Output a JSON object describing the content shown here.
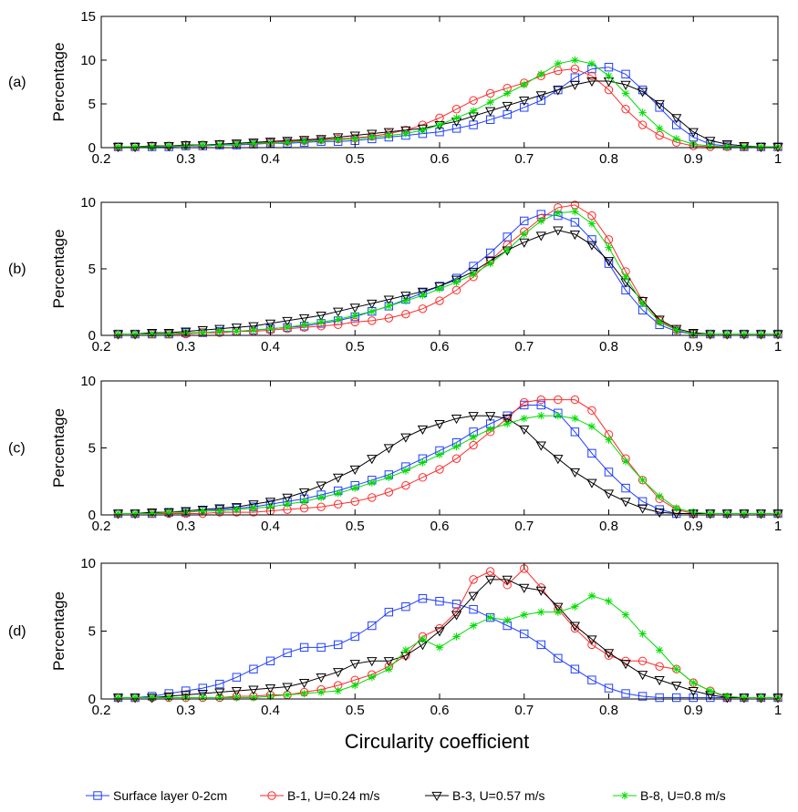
{
  "xlabel": "Circularity coefficient",
  "colors": {
    "Surface layer 0-2cm": "#1f3fff",
    "B-1, U=0.24 m/s": "#ff2a2a",
    "B-3, U=0.57 m/s": "#000000",
    "B-8, U=0.8 m/s": "#00dd00"
  },
  "markers": {
    "Surface layer 0-2cm": "square",
    "B-1, U=0.24 m/s": "circle",
    "B-3, U=0.57 m/s": "triangle-down",
    "B-8, U=0.8 m/s": "star"
  },
  "legend": [
    "Surface layer 0-2cm",
    "B-1, U=0.24 m/s",
    "B-3, U=0.57 m/s",
    "B-8, U=0.8 m/s"
  ],
  "chart_data": [
    {
      "type": "line",
      "panel_label": "(a)",
      "ylabel": "Percentage",
      "xlim": [
        0.2,
        1
      ],
      "ylim": [
        0,
        15
      ],
      "xticks": [
        "0.2",
        "0.3",
        "0.4",
        "0.5",
        "0.6",
        "0.7",
        "0.8",
        "0.9",
        "1"
      ],
      "yticks": [
        "0",
        "5",
        "10",
        "15"
      ],
      "x": [
        0.22,
        0.24,
        0.26,
        0.28,
        0.3,
        0.32,
        0.34,
        0.36,
        0.38,
        0.4,
        0.42,
        0.44,
        0.46,
        0.48,
        0.5,
        0.52,
        0.54,
        0.56,
        0.58,
        0.6,
        0.62,
        0.64,
        0.66,
        0.68,
        0.7,
        0.72,
        0.74,
        0.76,
        0.78,
        0.8,
        0.82,
        0.84,
        0.86,
        0.88,
        0.9,
        0.92,
        0.94,
        0.96,
        0.98,
        1.0
      ],
      "series": [
        {
          "name": "Surface layer 0-2cm",
          "values": [
            0.1,
            0.1,
            0.1,
            0.1,
            0.2,
            0.2,
            0.3,
            0.3,
            0.4,
            0.5,
            0.5,
            0.6,
            0.7,
            0.7,
            0.8,
            1.0,
            1.2,
            1.4,
            1.6,
            1.8,
            2.2,
            2.6,
            3.2,
            3.8,
            4.6,
            5.4,
            6.6,
            8.0,
            9.0,
            9.2,
            8.4,
            6.6,
            4.6,
            2.6,
            1.2,
            0.4,
            0.2,
            0.1,
            0.1,
            0.1
          ]
        },
        {
          "name": "B-1, U=0.24 m/s",
          "values": [
            0.1,
            0.1,
            0.2,
            0.2,
            0.3,
            0.3,
            0.4,
            0.4,
            0.5,
            0.6,
            0.7,
            0.8,
            0.9,
            1.0,
            1.1,
            1.3,
            1.6,
            2.0,
            2.6,
            3.4,
            4.4,
            5.4,
            6.2,
            6.8,
            7.4,
            8.2,
            8.8,
            9.0,
            8.2,
            6.6,
            4.4,
            2.6,
            1.4,
            0.6,
            0.2,
            0.1,
            0.1,
            0.1,
            0.1,
            0.1
          ]
        },
        {
          "name": "B-3, U=0.57 m/s",
          "values": [
            0.1,
            0.1,
            0.2,
            0.2,
            0.3,
            0.3,
            0.4,
            0.5,
            0.6,
            0.7,
            0.8,
            0.9,
            1.0,
            1.2,
            1.4,
            1.6,
            1.8,
            2.0,
            2.2,
            2.6,
            3.0,
            3.6,
            4.2,
            4.8,
            5.4,
            6.0,
            6.6,
            7.2,
            7.6,
            7.6,
            7.2,
            6.4,
            5.0,
            3.4,
            1.8,
            0.8,
            0.4,
            0.2,
            0.1,
            0.1
          ]
        },
        {
          "name": "B-8, U=0.8 m/s",
          "values": [
            0.1,
            0.1,
            0.1,
            0.2,
            0.2,
            0.3,
            0.3,
            0.4,
            0.5,
            0.5,
            0.6,
            0.7,
            0.8,
            0.9,
            1.0,
            1.2,
            1.4,
            1.6,
            2.0,
            2.6,
            3.4,
            4.2,
            5.2,
            6.2,
            7.2,
            8.4,
            9.6,
            10.0,
            9.6,
            8.2,
            6.2,
            4.0,
            2.2,
            1.0,
            0.4,
            0.2,
            0.1,
            0.1,
            0.1,
            0.1
          ]
        }
      ]
    },
    {
      "type": "line",
      "panel_label": "(b)",
      "ylabel": "Percentage",
      "xlim": [
        0.2,
        1
      ],
      "ylim": [
        0,
        10
      ],
      "xticks": [
        "0.2",
        "0.3",
        "0.4",
        "0.5",
        "0.6",
        "0.7",
        "0.8",
        "0.9",
        "1"
      ],
      "yticks": [
        "0",
        "5",
        "10"
      ],
      "x": [
        0.22,
        0.24,
        0.26,
        0.28,
        0.3,
        0.32,
        0.34,
        0.36,
        0.38,
        0.4,
        0.42,
        0.44,
        0.46,
        0.48,
        0.5,
        0.52,
        0.54,
        0.56,
        0.58,
        0.6,
        0.62,
        0.64,
        0.66,
        0.68,
        0.7,
        0.72,
        0.74,
        0.76,
        0.78,
        0.8,
        0.82,
        0.84,
        0.86,
        0.88,
        0.9,
        0.92,
        0.94,
        0.96,
        0.98,
        1.0
      ],
      "series": [
        {
          "name": "Surface layer 0-2cm",
          "values": [
            0.1,
            0.1,
            0.1,
            0.1,
            0.2,
            0.2,
            0.3,
            0.3,
            0.4,
            0.5,
            0.6,
            0.7,
            0.9,
            1.1,
            1.4,
            1.8,
            2.2,
            2.7,
            3.2,
            3.7,
            4.3,
            5.2,
            6.2,
            7.4,
            8.6,
            9.1,
            9.0,
            8.5,
            7.2,
            5.4,
            3.4,
            1.9,
            0.8,
            0.3,
            0.1,
            0.1,
            0.1,
            0.1,
            0.1,
            0.1
          ]
        },
        {
          "name": "B-1, U=0.24 m/s",
          "values": [
            0.1,
            0.1,
            0.1,
            0.1,
            0.1,
            0.2,
            0.2,
            0.3,
            0.3,
            0.4,
            0.5,
            0.6,
            0.7,
            0.8,
            1.0,
            1.1,
            1.3,
            1.6,
            2.0,
            2.6,
            3.4,
            4.4,
            5.6,
            6.8,
            7.8,
            8.8,
            9.6,
            9.8,
            9.0,
            7.2,
            4.8,
            2.6,
            1.1,
            0.4,
            0.1,
            0.1,
            0.1,
            0.1,
            0.1,
            0.1
          ]
        },
        {
          "name": "B-3, U=0.57 m/s",
          "values": [
            0.1,
            0.1,
            0.2,
            0.2,
            0.3,
            0.4,
            0.5,
            0.6,
            0.7,
            0.9,
            1.1,
            1.3,
            1.5,
            1.8,
            2.1,
            2.4,
            2.7,
            3.0,
            3.3,
            3.7,
            4.2,
            4.8,
            5.6,
            6.4,
            7.0,
            7.5,
            7.9,
            7.6,
            6.8,
            5.6,
            4.0,
            2.6,
            1.2,
            0.5,
            0.2,
            0.1,
            0.1,
            0.1,
            0.1,
            0.1
          ]
        },
        {
          "name": "B-8, U=0.8 m/s",
          "values": [
            0.1,
            0.1,
            0.1,
            0.1,
            0.2,
            0.2,
            0.3,
            0.3,
            0.4,
            0.5,
            0.6,
            0.8,
            1.0,
            1.2,
            1.5,
            1.8,
            2.2,
            2.6,
            3.0,
            3.5,
            4.0,
            4.6,
            5.4,
            6.4,
            7.6,
            8.6,
            9.2,
            9.3,
            8.4,
            6.6,
            4.4,
            2.4,
            1.0,
            0.4,
            0.1,
            0.1,
            0.1,
            0.1,
            0.1,
            0.1
          ]
        }
      ]
    },
    {
      "type": "line",
      "panel_label": "(c)",
      "ylabel": "Percentage",
      "xlim": [
        0.2,
        1
      ],
      "ylim": [
        0,
        10
      ],
      "xticks": [
        "0.2",
        "0.3",
        "0.4",
        "0.5",
        "0.6",
        "0.7",
        "0.8",
        "0.9",
        "1"
      ],
      "yticks": [
        "0",
        "5",
        "10"
      ],
      "x": [
        0.22,
        0.24,
        0.26,
        0.28,
        0.3,
        0.32,
        0.34,
        0.36,
        0.38,
        0.4,
        0.42,
        0.44,
        0.46,
        0.48,
        0.5,
        0.52,
        0.54,
        0.56,
        0.58,
        0.6,
        0.62,
        0.64,
        0.66,
        0.68,
        0.7,
        0.72,
        0.74,
        0.76,
        0.78,
        0.8,
        0.82,
        0.84,
        0.86,
        0.88,
        0.9,
        0.92,
        0.94,
        0.96,
        0.98,
        1.0
      ],
      "series": [
        {
          "name": "Surface layer 0-2cm",
          "values": [
            0.1,
            0.1,
            0.1,
            0.2,
            0.2,
            0.3,
            0.4,
            0.5,
            0.6,
            0.8,
            1.0,
            1.2,
            1.5,
            1.8,
            2.2,
            2.6,
            3.0,
            3.6,
            4.2,
            4.8,
            5.4,
            6.2,
            6.8,
            7.4,
            8.2,
            8.2,
            7.6,
            6.2,
            4.6,
            3.2,
            2.0,
            1.0,
            0.4,
            0.1,
            0.1,
            0.1,
            0.1,
            0.1,
            0.1,
            0.1
          ]
        },
        {
          "name": "B-1, U=0.24 m/s",
          "values": [
            0.1,
            0.1,
            0.1,
            0.1,
            0.1,
            0.1,
            0.2,
            0.2,
            0.2,
            0.3,
            0.4,
            0.5,
            0.6,
            0.8,
            1.0,
            1.3,
            1.7,
            2.2,
            2.8,
            3.4,
            4.2,
            5.2,
            6.2,
            7.2,
            8.4,
            8.6,
            8.6,
            8.6,
            7.8,
            6.0,
            4.2,
            2.6,
            1.2,
            0.4,
            0.1,
            0.1,
            0.1,
            0.1,
            0.1,
            0.1
          ]
        },
        {
          "name": "B-3, U=0.57 m/s",
          "values": [
            0.1,
            0.1,
            0.2,
            0.2,
            0.3,
            0.4,
            0.5,
            0.6,
            0.8,
            1.0,
            1.3,
            1.7,
            2.2,
            2.8,
            3.4,
            4.2,
            5.0,
            5.8,
            6.4,
            6.8,
            7.2,
            7.4,
            7.4,
            7.2,
            6.4,
            5.2,
            4.2,
            3.2,
            2.4,
            1.6,
            1.0,
            0.5,
            0.2,
            0.1,
            0.1,
            0.1,
            0.1,
            0.1,
            0.1,
            0.1
          ]
        },
        {
          "name": "B-8, U=0.8 m/s",
          "values": [
            0.1,
            0.1,
            0.1,
            0.2,
            0.2,
            0.3,
            0.3,
            0.4,
            0.5,
            0.6,
            0.8,
            1.0,
            1.3,
            1.6,
            2.0,
            2.4,
            2.8,
            3.3,
            3.9,
            4.5,
            5.1,
            5.8,
            6.4,
            6.8,
            7.2,
            7.4,
            7.4,
            7.2,
            6.6,
            5.6,
            4.0,
            2.6,
            1.4,
            0.5,
            0.2,
            0.1,
            0.1,
            0.1,
            0.1,
            0.1
          ]
        }
      ]
    },
    {
      "type": "line",
      "panel_label": "(d)",
      "ylabel": "Percentage",
      "xlim": [
        0.2,
        1
      ],
      "ylim": [
        0,
        10
      ],
      "xticks": [
        "0.2",
        "0.3",
        "0.4",
        "0.5",
        "0.6",
        "0.7",
        "0.8",
        "0.9",
        "1"
      ],
      "yticks": [
        "0",
        "5",
        "10"
      ],
      "x": [
        0.22,
        0.24,
        0.26,
        0.28,
        0.3,
        0.32,
        0.34,
        0.36,
        0.38,
        0.4,
        0.42,
        0.44,
        0.46,
        0.48,
        0.5,
        0.52,
        0.54,
        0.56,
        0.58,
        0.6,
        0.62,
        0.64,
        0.66,
        0.68,
        0.7,
        0.72,
        0.74,
        0.76,
        0.78,
        0.8,
        0.82,
        0.84,
        0.86,
        0.88,
        0.9,
        0.92,
        0.94,
        0.96,
        0.98,
        1.0
      ],
      "series": [
        {
          "name": "Surface layer 0-2cm",
          "values": [
            0.1,
            0.1,
            0.2,
            0.4,
            0.6,
            0.8,
            1.1,
            1.6,
            2.2,
            2.8,
            3.4,
            3.8,
            3.8,
            4.0,
            4.6,
            5.4,
            6.4,
            6.8,
            7.4,
            7.2,
            7.0,
            6.6,
            6.0,
            5.4,
            4.8,
            4.0,
            3.0,
            2.2,
            1.4,
            0.8,
            0.4,
            0.2,
            0.1,
            0.1,
            0.1,
            0.1,
            0.1,
            0.1,
            0.1,
            0.1
          ]
        },
        {
          "name": "B-1, U=0.24 m/s",
          "values": [
            0.1,
            0.1,
            0.1,
            0.1,
            0.1,
            0.1,
            0.1,
            0.2,
            0.2,
            0.3,
            0.3,
            0.5,
            0.7,
            1.0,
            1.4,
            1.8,
            2.4,
            3.2,
            4.6,
            5.2,
            6.4,
            8.8,
            9.4,
            8.4,
            9.6,
            8.2,
            6.6,
            5.2,
            4.0,
            3.2,
            2.8,
            2.8,
            2.4,
            2.2,
            1.2,
            0.6,
            0.1,
            0.1,
            0.1,
            0.1
          ]
        },
        {
          "name": "B-3, U=0.57 m/s",
          "values": [
            0.1,
            0.1,
            0.1,
            0.2,
            0.3,
            0.4,
            0.5,
            0.6,
            0.7,
            0.8,
            0.9,
            1.2,
            1.6,
            2.0,
            2.6,
            2.8,
            2.8,
            3.2,
            4.0,
            5.0,
            6.2,
            7.6,
            8.8,
            8.8,
            8.2,
            8.0,
            6.8,
            5.4,
            4.4,
            3.4,
            2.6,
            1.8,
            1.4,
            1.0,
            0.6,
            0.3,
            0.1,
            0.1,
            0.1,
            0.1
          ]
        },
        {
          "name": "B-8, U=0.8 m/s",
          "values": [
            0.1,
            0.1,
            0.1,
            0.1,
            0.1,
            0.1,
            0.1,
            0.1,
            0.1,
            0.2,
            0.3,
            0.4,
            0.5,
            0.6,
            1.0,
            1.6,
            2.2,
            3.6,
            4.4,
            3.8,
            4.6,
            5.4,
            6.0,
            5.8,
            6.2,
            6.4,
            6.4,
            6.8,
            7.6,
            7.2,
            6.2,
            4.8,
            3.6,
            2.2,
            1.2,
            0.6,
            0.2,
            0.1,
            0.1,
            0.1
          ]
        }
      ]
    }
  ]
}
